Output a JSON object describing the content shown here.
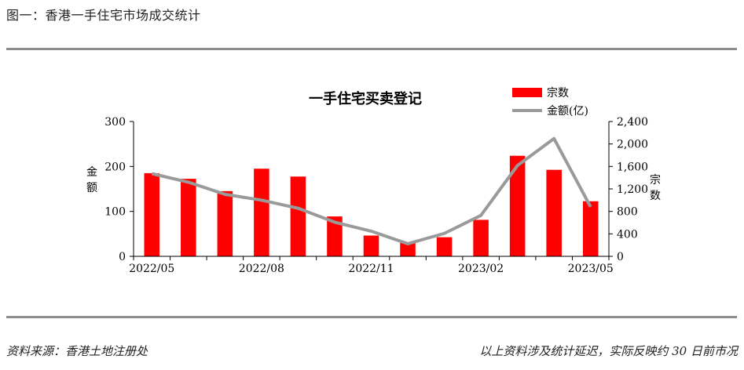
{
  "header": {
    "figure_title": "图一：香港一手住宅市场成交统计"
  },
  "footer": {
    "source": "资料来源：香港土地注册处",
    "note": "以上资料涉及统计延迟，实际反映约 30 日前市况"
  },
  "colors": {
    "bar": "#ff0000",
    "line": "#9a9a9a",
    "rule": "#8c8c8c"
  },
  "chart_data": {
    "type": "bar+line",
    "title": "一手住宅买卖登记",
    "categories": [
      "2022/05",
      "2022/06",
      "2022/07",
      "2022/08",
      "2022/09",
      "2022/10",
      "2022/11",
      "2022/12",
      "2023/01",
      "2023/02",
      "2023/03",
      "2023/04",
      "2023/05"
    ],
    "x_tick_labels": [
      "2022/05",
      "2022/08",
      "2022/11",
      "2023/02",
      "2023/05"
    ],
    "series": [
      {
        "name": "宗数",
        "type": "bar",
        "axis": "right",
        "values": [
          1480,
          1380,
          1160,
          1560,
          1420,
          710,
          370,
          240,
          340,
          650,
          1790,
          1540,
          980
        ]
      },
      {
        "name": "金额(亿)",
        "type": "line",
        "axis": "left",
        "values": [
          184,
          165,
          138,
          125,
          107,
          76,
          56,
          28,
          51,
          91,
          202,
          262,
          110
        ]
      }
    ],
    "left_axis": {
      "label": "金额",
      "ylim": [
        0,
        300
      ],
      "ticks": [
        "0",
        "100",
        "200",
        "300"
      ]
    },
    "right_axis": {
      "label": "宗数",
      "ylim": [
        0,
        2400
      ],
      "ticks": [
        "0",
        "400",
        "800",
        "1,200",
        "1,600",
        "2,000",
        "2,400"
      ]
    },
    "legend_position": "top-right",
    "grid": false
  }
}
